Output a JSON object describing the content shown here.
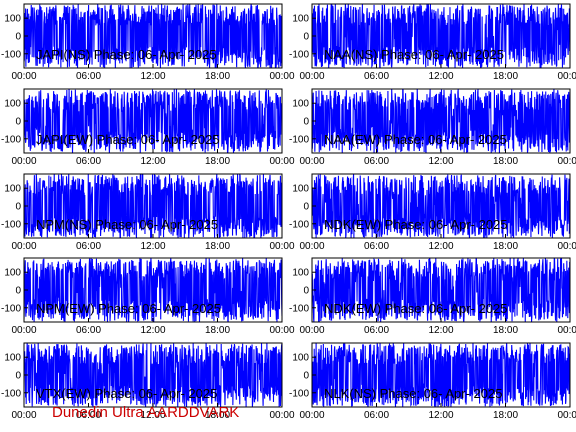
{
  "chart_data": [
    {
      "type": "line",
      "title": "JAPI(NS) Phase: 06- Apr- 2025",
      "x_ticks": [
        "00:00",
        "06:00",
        "12:00",
        "18:00",
        "00:00"
      ],
      "y_ticks": [
        "100",
        "0",
        "-100"
      ],
      "ylim": [
        -180,
        180
      ],
      "density": 0.98
    },
    {
      "type": "line",
      "title": "NAA(NS) Phase: 06- Apr- 2025",
      "x_ticks": [
        "00:00",
        "06:00",
        "12:00",
        "18:00",
        "00:00"
      ],
      "y_ticks": [
        "100",
        "0",
        "-100"
      ],
      "ylim": [
        -180,
        180
      ],
      "density": 0.96
    },
    {
      "type": "line",
      "title": "JAPI(EW) Phase: 06- Apr- 2025",
      "x_ticks": [
        "00:00",
        "06:00",
        "12:00",
        "18:00",
        "00:00"
      ],
      "y_ticks": [
        "100",
        "0",
        "-100"
      ],
      "ylim": [
        -180,
        180
      ],
      "density": 0.8
    },
    {
      "type": "line",
      "title": "NAA(EW) Phase: 06- Apr- 2025",
      "x_ticks": [
        "00:00",
        "06:00",
        "12:00",
        "18:00",
        "00:00"
      ],
      "y_ticks": [
        "100",
        "0",
        "-100"
      ],
      "ylim": [
        -180,
        180
      ],
      "density": 0.8
    },
    {
      "type": "line",
      "title": "NPM(NS) Phase: 06- Apr- 2025",
      "x_ticks": [
        "00:00",
        "06:00",
        "12:00",
        "18:00",
        "00:00"
      ],
      "y_ticks": [
        "100",
        "0",
        "-100"
      ],
      "ylim": [
        -180,
        180
      ],
      "density": 0.99
    },
    {
      "type": "line",
      "title": "NDK(EW) Phase: 06- Apr- 2025",
      "x_ticks": [
        "00:00",
        "06:00",
        "12:00",
        "18:00",
        "00:00"
      ],
      "y_ticks": [
        "100",
        "0",
        "-100"
      ],
      "ylim": [
        -180,
        180
      ],
      "density": 0.78
    },
    {
      "type": "line",
      "title": "NPM(EW) Phase: 06- Apr- 2025",
      "x_ticks": [
        "00:00",
        "06:00",
        "12:00",
        "18:00",
        "00:00"
      ],
      "y_ticks": [
        "100",
        "0",
        "-100"
      ],
      "ylim": [
        -180,
        180
      ],
      "density": 0.85
    },
    {
      "type": "line",
      "title": "NDK(EW) Phase: 06- Apr- 2025",
      "x_ticks": [
        "00:00",
        "06:00",
        "12:00",
        "18:00",
        "00:00"
      ],
      "y_ticks": [
        "100",
        "0",
        "-100"
      ],
      "ylim": [
        -180,
        180
      ],
      "density": 0.8
    },
    {
      "type": "line",
      "title": "VTX(EW) Phase: 06- Apr- 2025",
      "x_ticks": [
        "00:00",
        "06:00",
        "12:00",
        "18:00",
        "00:00"
      ],
      "y_ticks": [
        "100",
        "0",
        "-100"
      ],
      "ylim": [
        -180,
        180
      ],
      "density": 0.82
    },
    {
      "type": "line",
      "title": "NLK(NS) Phase: 06- Apr- 2025",
      "x_ticks": [
        "00:00",
        "06:00",
        "12:00",
        "18:00",
        "00:00"
      ],
      "y_ticks": [
        "100",
        "0",
        "-100"
      ],
      "ylim": [
        -180,
        180
      ],
      "density": 0.95
    }
  ],
  "footer": "Dunedin Ultra AARDDVARK",
  "colors": {
    "trace": "#0000ff",
    "footer": "#cc0000",
    "axis": "#000000"
  }
}
